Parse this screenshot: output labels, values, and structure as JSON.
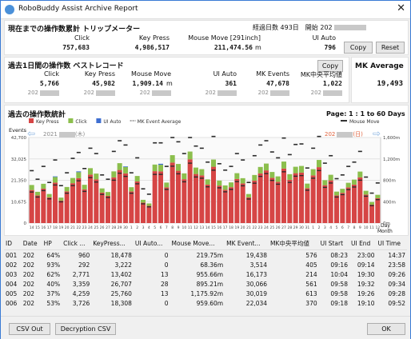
{
  "window": {
    "title": "RoboBuddy Assist Archive Report"
  },
  "total": {
    "header": "現在までの操作数累計 トリップメーター",
    "elapsed": "経過日数 493日　開始 202",
    "labels": [
      "Click",
      "Key Press",
      "Mouse Move [291inch]",
      "UI Auto"
    ],
    "values": [
      "757,683",
      "4,986,517",
      "211,474.56",
      "796"
    ],
    "move_unit": "m",
    "copy": "Copy",
    "reset": "Reset"
  },
  "best": {
    "header": "過去1日間の操作数 ベストレコード",
    "copy": "Copy",
    "labels": [
      "Click",
      "Key Press",
      "Mouse Move",
      "UI Auto",
      "MK Events",
      "MK中央平均値"
    ],
    "values": [
      "5,766",
      "45,982",
      "1,909.14",
      "361",
      "47,678",
      "1,022"
    ],
    "move_unit": "m",
    "date_prefix": "202"
  },
  "mk": {
    "label": "MK Average",
    "value": "19,493"
  },
  "stats": {
    "header": "過去の操作数統計",
    "page": "Page:  1 : 1 to 60 Days",
    "legend": [
      "Key Press",
      "Click",
      "UI Auto",
      "MK Event Average"
    ],
    "legend2": "Mouse Move",
    "events_label": "Events",
    "start_date": "2021",
    "start_suffix": "(木)",
    "end_date": "202",
    "end_suffix": "(日)",
    "yleft": [
      "42,700",
      "32,025",
      "21,350",
      "10,675",
      "0"
    ],
    "yright": [
      "1,600m",
      "1,200m",
      "800m",
      "400m",
      "0m"
    ],
    "day_label": "Day",
    "month_label": "Month",
    "colors": {
      "key": "#d64545",
      "click": "#8cbf4d",
      "ui": "#3f6fd1",
      "mk": "#2b2b2b",
      "move": "#2b2b2b"
    }
  },
  "chart_data": {
    "type": "bar",
    "title": "過去の操作数統計",
    "ylim": [
      0,
      42700
    ],
    "y2lim": [
      0,
      1600
    ],
    "key": [
      16500,
      13800,
      17200,
      12800,
      20200,
      11200,
      15800,
      19900,
      22400,
      16800,
      24200,
      21800,
      15200,
      13600,
      22800,
      26500,
      24800,
      15800,
      20800,
      10200,
      8600,
      25900,
      25800,
      17800,
      30200,
      26100,
      21900,
      31800,
      24500,
      23800,
      19200,
      28100,
      18700,
      16600,
      17900,
      22000,
      19800,
      12800,
      21200,
      24800,
      26300,
      22600,
      20600,
      27200,
      21600,
      24900,
      25200,
      17400,
      23800,
      27900,
      18900,
      21300,
      13800,
      15100,
      17800,
      19200,
      22800,
      14200,
      9200,
      12400
    ],
    "click": [
      2500,
      1800,
      2400,
      1700,
      2800,
      1500,
      2200,
      2600,
      3000,
      2300,
      3200,
      2900,
      2100,
      1900,
      3000,
      3400,
      3200,
      2100,
      2700,
      1400,
      1200,
      3300,
      3300,
      2400,
      3700,
      3400,
      2900,
      3900,
      3200,
      3100,
      2600,
      3600,
      2500,
      2200,
      2400,
      2900,
      2600,
      1700,
      2800,
      3200,
      3400,
      2900,
      2700,
      3500,
      2800,
      3200,
      3300,
      2300,
      3100,
      3600,
      2500,
      2800,
      1900,
      2000,
      2300,
      2500,
      2900,
      1900,
      1300,
      1700
    ],
    "ui": [
      0,
      0,
      0,
      0,
      300,
      0,
      0,
      0,
      400,
      0,
      0,
      0,
      0,
      0,
      0,
      0,
      300,
      0,
      0,
      0,
      0,
      0,
      500,
      0,
      0,
      0,
      0,
      0,
      0,
      0,
      0,
      0,
      0,
      0,
      0,
      0,
      0,
      0,
      0,
      0,
      0,
      0,
      0,
      0,
      0,
      0,
      0,
      0,
      0,
      0,
      0,
      0,
      0,
      0,
      0,
      0,
      0,
      0,
      0,
      0
    ],
    "mk": [
      15500,
      13000,
      16200,
      12100,
      19000,
      10600,
      14900,
      18700,
      21100,
      15800,
      22700,
      20500,
      14300,
      12800,
      21400,
      24900,
      23300,
      14900,
      19600,
      9600,
      8100,
      24300,
      24300,
      16800,
      28400,
      24600,
      20600,
      29900,
      23000,
      22400,
      18100,
      26400,
      17600,
      15600,
      16800,
      20700,
      18600,
      12000,
      19900,
      23300,
      24700,
      21300,
      19400,
      25600,
      20300,
      23400,
      23700,
      16400,
      22400,
      26200,
      17800,
      20000,
      13000,
      14200,
      16700,
      18000,
      21400,
      13400,
      8700,
      11700
    ],
    "move": [
      980,
      820,
      1060,
      760,
      1180,
      700,
      940,
      1210,
      1320,
      1020,
      1400,
      1300,
      900,
      820,
      1340,
      1540,
      1460,
      940,
      1220,
      640,
      540,
      1500,
      1500,
      1060,
      1600,
      1520,
      1300,
      1600,
      1440,
      1400,
      1140,
      1620,
      1110,
      990,
      1060,
      1300,
      1180,
      760,
      1260,
      1460,
      1540,
      1330,
      1220,
      1590,
      1280,
      1470,
      1480,
      1030,
      1400,
      1620,
      1120,
      1260,
      830,
      900,
      1060,
      1140,
      1340,
      860,
      560,
      750
    ],
    "days": [
      "14",
      "15",
      "16",
      "17",
      "18",
      "19",
      "20",
      "21",
      "22",
      "23",
      "24",
      "25",
      "26",
      "27",
      "28",
      "29",
      "30",
      "1",
      "2",
      "3",
      "4",
      "5",
      "6",
      "7",
      "8",
      "9",
      "10",
      "11",
      "12",
      "13",
      "14",
      "15",
      "16",
      "17",
      "18",
      "19",
      "20",
      "21",
      "22",
      "23",
      "24",
      "25",
      "26",
      "27",
      "28",
      "29",
      "30",
      "31",
      "1",
      "2",
      "3",
      "4",
      "5",
      "6",
      "7",
      "8",
      "9",
      "10",
      "11",
      "12"
    ]
  },
  "table": {
    "headers": [
      "ID",
      "Date",
      "HP",
      "Click ...",
      "KeyPress...",
      "UI Auto...",
      "Mouse Move...",
      "MK Event...",
      "MK中央平均値",
      "UI Start",
      "UI End",
      "UI Time"
    ],
    "rows": [
      [
        "001",
        "202",
        "64%",
        "960",
        "18,478",
        "0",
        "219.75m",
        "19,438",
        "576",
        "08:23",
        "23:00",
        "14:37"
      ],
      [
        "002",
        "202",
        "93%",
        "292",
        "3,222",
        "0",
        "68.36m",
        "3,514",
        "405",
        "09:16",
        "09:14",
        "23:58"
      ],
      [
        "003",
        "202",
        "62%",
        "2,771",
        "13,402",
        "13",
        "955.66m",
        "16,173",
        "214",
        "10:04",
        "19:30",
        "09:26"
      ],
      [
        "004",
        "202",
        "40%",
        "3,359",
        "26,707",
        "28",
        "895.21m",
        "30,066",
        "561",
        "09:58",
        "19:32",
        "09:34"
      ],
      [
        "005",
        "202",
        "37%",
        "4,259",
        "25,760",
        "13",
        "1,175.92m",
        "30,019",
        "613",
        "09:58",
        "19:26",
        "09:28"
      ],
      [
        "006",
        "202",
        "53%",
        "3,726",
        "18,308",
        "0",
        "959.60m",
        "22,034",
        "370",
        "09:18",
        "19:10",
        "09:52"
      ]
    ]
  },
  "footer": {
    "csv_out": "CSV Out",
    "decryption_csv": "Decryption CSV",
    "ok": "OK"
  }
}
